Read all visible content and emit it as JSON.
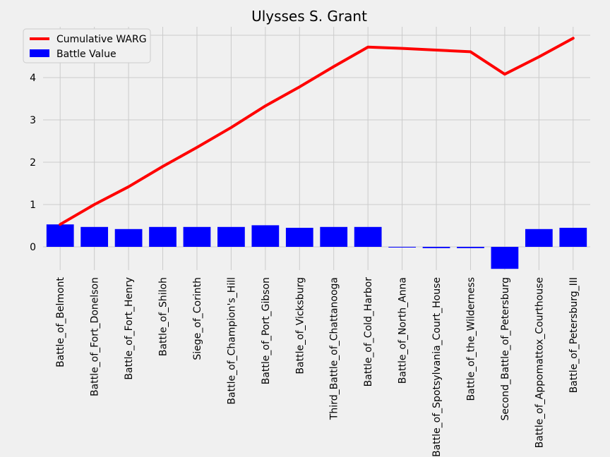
{
  "chart_data": {
    "type": "bar",
    "title": "Ulysses S. Grant",
    "xlabel": "",
    "ylabel": "",
    "ylim": [
      -0.55,
      5.2
    ],
    "yticks": [
      0,
      1,
      2,
      3,
      4,
      5
    ],
    "grid": true,
    "legend_position": "top-left",
    "categories": [
      "Battle_of_Belmont",
      "Battle_of_Fort_Donelson",
      "Battle_of_Fort_Henry",
      "Battle_of_Shiloh",
      "Siege_of_Corinth",
      "Battle_of_Champion's_Hill",
      "Battle_of_Port_Gibson",
      "Battle_of_Vicksburg",
      "Third_Battle_of_Chattanooga",
      "Battle_of_Cold_Harbor",
      "Battle_of_North_Anna",
      "Battle_of_Spotsylvania_Court_House",
      "Battle_of_the_Wilderness",
      "Second_Battle_of_Petersburg",
      "Battle_of_Appomattox_Courthouse",
      "Battle_of_Petersburg_III"
    ],
    "series": [
      {
        "name": "Cumulative WARG",
        "kind": "line",
        "color": "#ff0000",
        "values": [
          0.53,
          1.0,
          1.42,
          1.9,
          2.35,
          2.82,
          3.33,
          3.78,
          4.26,
          4.72,
          4.69,
          4.65,
          4.61,
          4.08,
          4.49,
          4.93
        ]
      },
      {
        "name": "Battle Value",
        "kind": "bar",
        "color": "#0000ff",
        "values": [
          0.53,
          0.47,
          0.42,
          0.47,
          0.47,
          0.47,
          0.51,
          0.45,
          0.47,
          0.47,
          -0.01,
          -0.03,
          -0.03,
          -0.52,
          0.42,
          0.45
        ]
      }
    ]
  }
}
